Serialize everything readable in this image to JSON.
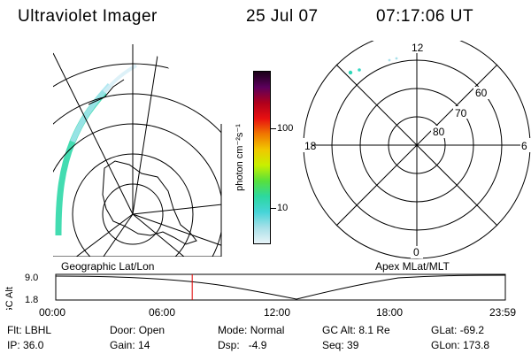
{
  "header": {
    "instrument": "Ultraviolet Imager",
    "date": "25 Jul 07",
    "time": "07:17:06 UT"
  },
  "geo_panel": {
    "label": "Geographic Lat/Lon"
  },
  "colorbar": {
    "unit_label": "photon cm⁻²s⁻¹",
    "ticks": [
      "100",
      "10"
    ],
    "scale": "log",
    "colors": [
      "#1a0018",
      "#5c005c",
      "#b0001c",
      "#e81010",
      "#f07800",
      "#f0c800",
      "#c8f000",
      "#58e03c",
      "#2cd8a0",
      "#46d4d8",
      "#a8e0e8",
      "#e8f4f8"
    ]
  },
  "mlt_panel": {
    "label": "Apex MLat/MLT",
    "hour_labels": {
      "top": "12",
      "left": "18",
      "right": "6",
      "bottom": "0"
    },
    "lat_labels": [
      "60",
      "70",
      "80"
    ]
  },
  "timeline": {
    "y_label": "GC Alt",
    "y_ticks": [
      "9.0",
      "1.8"
    ],
    "x_ticks": [
      "00:00",
      "06:00",
      "12:00",
      "18:00",
      "23:59"
    ],
    "current_time_fraction": 0.3035
  },
  "status": {
    "filter_label": "Flt:",
    "filter_value": "LBHL",
    "ip_label": "IP:",
    "ip_value": "36.0",
    "door_label": "Door:",
    "door_value": "Open",
    "gain_label": "Gain:",
    "gain_value": "14",
    "mode_label": "Mode:",
    "mode_value": "Normal",
    "dsp_label": "Dsp:",
    "dsp_value": "-4.9",
    "gcalt_label": "GC Alt:",
    "gcalt_value": "8.1 Re",
    "seq_label": "Seq:",
    "seq_value": "39",
    "glat_label": "GLat:",
    "glat_value": "-69.2",
    "glon_label": "GLon:",
    "glon_value": "173.8"
  }
}
